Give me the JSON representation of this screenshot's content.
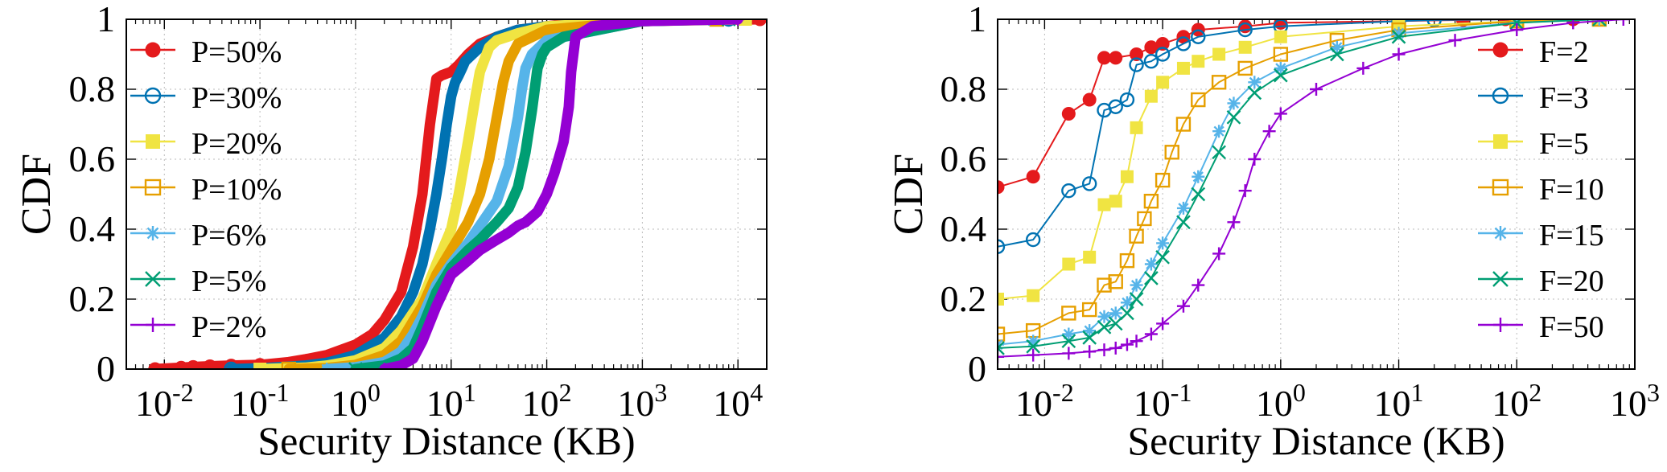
{
  "chart_data": [
    {
      "type": "line",
      "xlabel": "Security Distance (KB)",
      "ylabel": "CDF",
      "xscale": "log",
      "xlim": [
        0.004,
        20000
      ],
      "ylim": [
        0,
        1
      ],
      "xticks": [
        0.01,
        0.1,
        1,
        10,
        100,
        1000,
        10000
      ],
      "yticks": [
        0,
        0.2,
        0.4,
        0.6,
        0.8,
        1
      ],
      "ytick_labels": [
        "0",
        "0.2",
        "0.4",
        "0.6",
        "0.8",
        "1"
      ],
      "grid": true,
      "legend_position": "top-left",
      "series": [
        {
          "name": "P=50%",
          "color": "#e41a1c",
          "marker": "circle-filled",
          "x": [
            0.008,
            0.015,
            0.02,
            0.03,
            0.05,
            0.1,
            0.2,
            0.3,
            0.5,
            1,
            1.5,
            2,
            3,
            4,
            5,
            6,
            7,
            8,
            10,
            12,
            15,
            20,
            30,
            50,
            100,
            200,
            500,
            1000,
            3000,
            5000,
            10000,
            17000
          ],
          "y": [
            0,
            0.004,
            0.006,
            0.008,
            0.01,
            0.012,
            0.02,
            0.028,
            0.04,
            0.07,
            0.1,
            0.14,
            0.22,
            0.35,
            0.5,
            0.7,
            0.83,
            0.84,
            0.85,
            0.87,
            0.9,
            0.93,
            0.95,
            0.97,
            0.98,
            0.99,
            0.995,
            0.997,
            0.998,
            0.999,
            0.999,
            1
          ]
        },
        {
          "name": "P=30%",
          "color": "#0072b2",
          "marker": "circle-open",
          "x": [
            0.05,
            0.1,
            0.3,
            0.5,
            1,
            2,
            3,
            4,
            5,
            6,
            7,
            8,
            9,
            10,
            11,
            12,
            13,
            14,
            20,
            30,
            50,
            100,
            1000,
            3000,
            8000
          ],
          "y": [
            0,
            0.002,
            0.01,
            0.018,
            0.04,
            0.09,
            0.15,
            0.22,
            0.3,
            0.4,
            0.5,
            0.6,
            0.7,
            0.78,
            0.82,
            0.84,
            0.86,
            0.88,
            0.92,
            0.95,
            0.97,
            0.98,
            0.995,
            0.998,
            1
          ]
        },
        {
          "name": "P=20%",
          "color": "#f0e442",
          "marker": "square-filled",
          "x": [
            0.1,
            0.3,
            0.5,
            1,
            2,
            3,
            5,
            7,
            10,
            12,
            15,
            18,
            20,
            25,
            30,
            50,
            100,
            1000,
            5000,
            12000
          ],
          "y": [
            0,
            0.004,
            0.01,
            0.025,
            0.06,
            0.11,
            0.2,
            0.3,
            0.4,
            0.5,
            0.65,
            0.78,
            0.85,
            0.92,
            0.94,
            0.96,
            0.98,
            0.995,
            0.998,
            1
          ]
        },
        {
          "name": "P=10%",
          "color": "#e69f00",
          "marker": "square-open",
          "x": [
            0.2,
            0.5,
            1,
            2,
            3,
            5,
            7,
            10,
            15,
            20,
            25,
            30,
            35,
            40,
            50,
            100,
            1000,
            6000
          ],
          "y": [
            0,
            0.003,
            0.012,
            0.04,
            0.08,
            0.18,
            0.27,
            0.34,
            0.42,
            0.5,
            0.6,
            0.72,
            0.82,
            0.88,
            0.93,
            0.97,
            0.995,
            1
          ]
        },
        {
          "name": "P=6%",
          "color": "#56b4e9",
          "marker": "asterisk",
          "x": [
            0.5,
            1,
            2,
            3,
            4,
            5,
            7,
            10,
            15,
            20,
            30,
            40,
            50,
            55,
            60,
            70,
            100,
            1000,
            5000
          ],
          "y": [
            0,
            0.005,
            0.02,
            0.05,
            0.1,
            0.15,
            0.24,
            0.3,
            0.36,
            0.41,
            0.48,
            0.58,
            0.72,
            0.8,
            0.86,
            0.9,
            0.94,
            0.995,
            1
          ]
        },
        {
          "name": "P=5%",
          "color": "#009e73",
          "marker": "x",
          "x": [
            1,
            2,
            3,
            4,
            5,
            7,
            10,
            15,
            20,
            30,
            40,
            50,
            60,
            70,
            80,
            90,
            100,
            150,
            1000,
            8000
          ],
          "y": [
            0,
            0.01,
            0.03,
            0.06,
            0.12,
            0.22,
            0.29,
            0.34,
            0.37,
            0.42,
            0.46,
            0.52,
            0.62,
            0.74,
            0.86,
            0.9,
            0.92,
            0.95,
            0.995,
            1
          ]
        },
        {
          "name": "P=2%",
          "color": "#9400d3",
          "marker": "plus",
          "x": [
            2,
            3,
            4,
            5,
            7,
            10,
            15,
            20,
            30,
            40,
            50,
            60,
            80,
            100,
            120,
            150,
            170,
            180,
            200,
            300,
            1000,
            10000
          ],
          "y": [
            0,
            0.01,
            0.03,
            0.08,
            0.18,
            0.27,
            0.31,
            0.34,
            0.37,
            0.39,
            0.41,
            0.42,
            0.45,
            0.5,
            0.56,
            0.65,
            0.75,
            0.85,
            0.95,
            0.98,
            0.995,
            1
          ]
        }
      ]
    },
    {
      "type": "line",
      "xlabel": "Security Distance (KB)",
      "ylabel": "CDF",
      "xscale": "log",
      "xlim": [
        0.004,
        1000
      ],
      "ylim": [
        0,
        1
      ],
      "xticks": [
        0.01,
        0.1,
        1,
        10,
        100,
        1000
      ],
      "yticks": [
        0,
        0.2,
        0.4,
        0.6,
        0.8,
        1
      ],
      "ytick_labels": [
        "0",
        "0.2",
        "0.4",
        "0.6",
        "0.8",
        "1"
      ],
      "grid": true,
      "legend_position": "top-right",
      "series": [
        {
          "name": "F=2",
          "color": "#e41a1c",
          "marker": "circle-filled",
          "x": [
            0.004,
            0.008,
            0.016,
            0.024,
            0.032,
            0.04,
            0.06,
            0.08,
            0.1,
            0.15,
            0.2,
            0.5,
            1,
            10,
            35,
            80,
            300
          ],
          "y": [
            0.52,
            0.55,
            0.73,
            0.77,
            0.89,
            0.89,
            0.9,
            0.92,
            0.93,
            0.95,
            0.97,
            0.98,
            0.99,
            0.995,
            0.998,
            1,
            1
          ]
        },
        {
          "name": "F=3",
          "color": "#0072b2",
          "marker": "circle-open",
          "x": [
            0.004,
            0.008,
            0.016,
            0.024,
            0.032,
            0.04,
            0.05,
            0.06,
            0.08,
            0.1,
            0.15,
            0.2,
            0.5,
            1,
            10,
            20,
            100
          ],
          "y": [
            0.35,
            0.37,
            0.51,
            0.53,
            0.74,
            0.75,
            0.77,
            0.87,
            0.88,
            0.9,
            0.93,
            0.95,
            0.97,
            0.98,
            0.995,
            0.998,
            1
          ]
        },
        {
          "name": "F=5",
          "color": "#f0e442",
          "marker": "square-filled",
          "x": [
            0.004,
            0.008,
            0.016,
            0.024,
            0.032,
            0.04,
            0.05,
            0.06,
            0.08,
            0.1,
            0.15,
            0.2,
            0.3,
            0.5,
            1,
            10,
            100,
            500
          ],
          "y": [
            0.2,
            0.21,
            0.3,
            0.32,
            0.47,
            0.48,
            0.55,
            0.69,
            0.78,
            0.82,
            0.86,
            0.88,
            0.9,
            0.92,
            0.95,
            0.98,
            0.995,
            1
          ]
        },
        {
          "name": "F=10",
          "color": "#e69f00",
          "marker": "square-open",
          "x": [
            0.004,
            0.008,
            0.016,
            0.024,
            0.032,
            0.04,
            0.05,
            0.06,
            0.07,
            0.08,
            0.1,
            0.12,
            0.15,
            0.2,
            0.3,
            0.5,
            1,
            3,
            10,
            100,
            500
          ],
          "y": [
            0.1,
            0.11,
            0.16,
            0.17,
            0.24,
            0.25,
            0.31,
            0.38,
            0.43,
            0.48,
            0.54,
            0.62,
            0.7,
            0.77,
            0.82,
            0.86,
            0.9,
            0.94,
            0.97,
            0.995,
            1
          ]
        },
        {
          "name": "F=15",
          "color": "#56b4e9",
          "marker": "asterisk",
          "x": [
            0.004,
            0.008,
            0.016,
            0.024,
            0.032,
            0.04,
            0.05,
            0.06,
            0.08,
            0.1,
            0.15,
            0.2,
            0.3,
            0.4,
            0.6,
            1,
            3,
            10,
            100,
            500
          ],
          "y": [
            0.07,
            0.08,
            0.1,
            0.11,
            0.15,
            0.16,
            0.19,
            0.24,
            0.3,
            0.36,
            0.46,
            0.55,
            0.68,
            0.76,
            0.82,
            0.86,
            0.92,
            0.96,
            0.99,
            1
          ]
        },
        {
          "name": "F=20",
          "color": "#009e73",
          "marker": "x",
          "x": [
            0.004,
            0.008,
            0.016,
            0.024,
            0.032,
            0.04,
            0.05,
            0.06,
            0.08,
            0.1,
            0.15,
            0.2,
            0.3,
            0.4,
            0.6,
            1,
            3,
            10,
            100,
            500
          ],
          "y": [
            0.06,
            0.065,
            0.08,
            0.09,
            0.12,
            0.13,
            0.16,
            0.2,
            0.26,
            0.32,
            0.42,
            0.5,
            0.62,
            0.72,
            0.79,
            0.84,
            0.9,
            0.95,
            0.99,
            1
          ]
        },
        {
          "name": "F=50",
          "color": "#9400d3",
          "marker": "plus",
          "x": [
            0.004,
            0.008,
            0.016,
            0.024,
            0.032,
            0.04,
            0.05,
            0.06,
            0.08,
            0.1,
            0.15,
            0.2,
            0.3,
            0.4,
            0.5,
            0.6,
            0.8,
            1,
            2,
            5,
            10,
            30,
            100,
            300,
            800
          ],
          "y": [
            0.035,
            0.04,
            0.045,
            0.05,
            0.055,
            0.06,
            0.07,
            0.08,
            0.1,
            0.13,
            0.18,
            0.24,
            0.33,
            0.42,
            0.51,
            0.6,
            0.68,
            0.73,
            0.8,
            0.86,
            0.9,
            0.94,
            0.97,
            0.99,
            1
          ]
        }
      ]
    }
  ]
}
